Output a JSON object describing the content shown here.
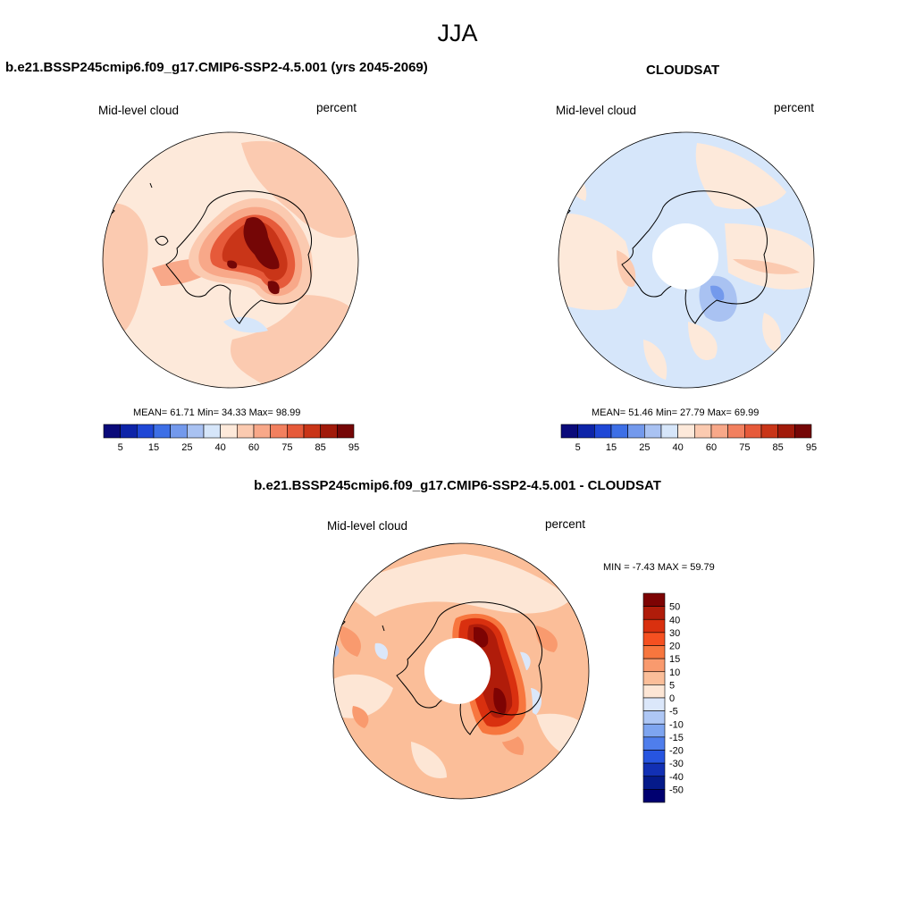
{
  "figure": {
    "season": "JJA"
  },
  "panels": [
    {
      "title": "b.e21.BSSP245cmip6.f09_g17.CMIP6-SSP2-4.5.001 (yrs 2045-2069)",
      "left_label": "Mid-level cloud",
      "right_label": "percent",
      "stats": "MEAN=  61.71  Min=  34.33  Max=  98.99"
    },
    {
      "title": "CLOUDSAT",
      "left_label": "Mid-level cloud",
      "right_label": "percent",
      "stats": "MEAN=  51.46  Min=  27.79  Max=  69.99"
    },
    {
      "title": "b.e21.BSSP245cmip6.f09_g17.CMIP6-SSP2-4.5.001 - CLOUDSAT",
      "left_label": "Mid-level cloud",
      "right_label": "percent",
      "stats": "MIN =  -7.43 MAX =  59.79"
    }
  ],
  "colorbar_abs": {
    "ticks": [
      "5",
      "15",
      "25",
      "40",
      "60",
      "75",
      "85",
      "95"
    ],
    "colors": [
      "#0a0a7a",
      "#0d24a8",
      "#1f47d6",
      "#3d6fe6",
      "#7399ec",
      "#a9c2f2",
      "#d6e6fa",
      "#fde9da",
      "#fbcab0",
      "#f8a889",
      "#f2805f",
      "#e65a3a",
      "#c93518",
      "#a11a0a",
      "#750606"
    ]
  },
  "colorbar_diff": {
    "ticks": [
      "50",
      "40",
      "30",
      "20",
      "15",
      "10",
      "5",
      "0",
      "-5",
      "-10",
      "-15",
      "-20",
      "-30",
      "-40",
      "-50"
    ],
    "colors": [
      "#7d0303",
      "#b01c0a",
      "#d9300f",
      "#f55021",
      "#f7763e",
      "#f99a6e",
      "#fbbe99",
      "#fde6d5",
      "#dbe7fa",
      "#aec7f5",
      "#7ea5f0",
      "#4f7eec",
      "#2755e0",
      "#1230b4",
      "#051a8a",
      "#000070"
    ]
  }
}
